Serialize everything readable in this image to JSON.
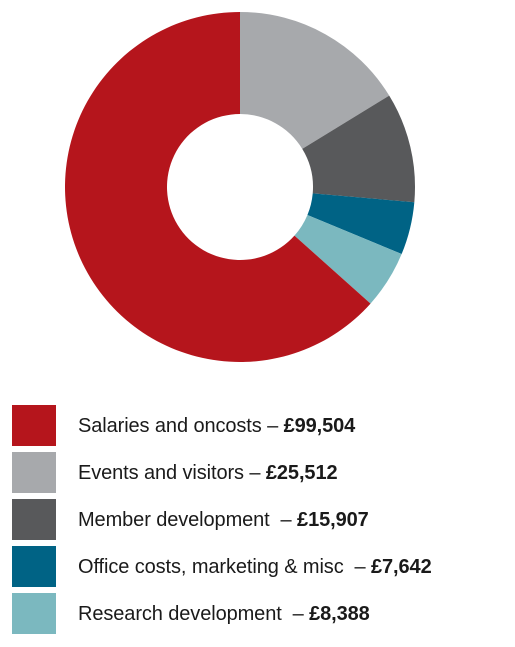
{
  "chart_data": {
    "type": "pie",
    "subtype": "donut",
    "slices": [
      {
        "label": "Salaries and oncosts",
        "separator": " – ",
        "value": 99504,
        "value_text": "£99,504",
        "color": "#b5151c"
      },
      {
        "label": "Events and visitors",
        "separator": " – ",
        "value": 25512,
        "value_text": "£25,512",
        "color": "#a7a9ac"
      },
      {
        "label": "Member development",
        "separator": "  – ",
        "value": 15907,
        "value_text": "£15,907",
        "color": "#58595b"
      },
      {
        "label": "Office costs, marketing & misc",
        "separator": "  – ",
        "value": 7642,
        "value_text": "£7,642",
        "color": "#006385"
      },
      {
        "label": "Research development",
        "separator": "  – ",
        "value": 8388,
        "value_text": "£8,388",
        "color": "#7bb8bf"
      }
    ],
    "order_clockwise_from_top": [
      1,
      2,
      3,
      4,
      0
    ],
    "legend_position": "bottom"
  }
}
